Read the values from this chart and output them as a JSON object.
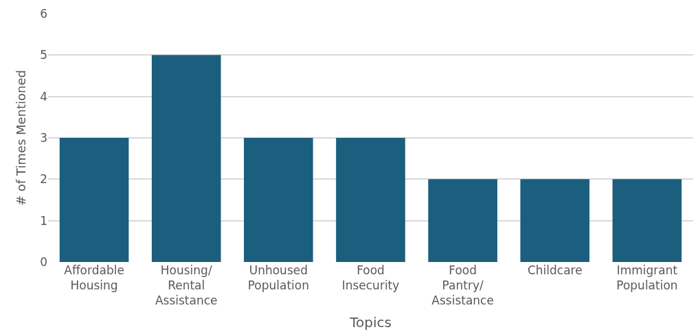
{
  "chart_data": {
    "type": "bar",
    "xlabel": "Topics",
    "ylabel": "# of Times Mentioned",
    "categories": [
      "Affordable Housing",
      "Housing/ Rental Assistance",
      "Unhoused Population",
      "Food Insecurity",
      "Food Pantry/ Assistance",
      "Childcare",
      "Immigrant Population"
    ],
    "values": [
      3,
      5,
      3,
      3,
      2,
      2,
      2
    ],
    "color": "#1b5e7e",
    "ylim": [
      0,
      6
    ],
    "yticks": [
      0,
      1,
      2,
      3,
      4,
      5,
      6
    ],
    "grid": "y",
    "legend": false
  }
}
